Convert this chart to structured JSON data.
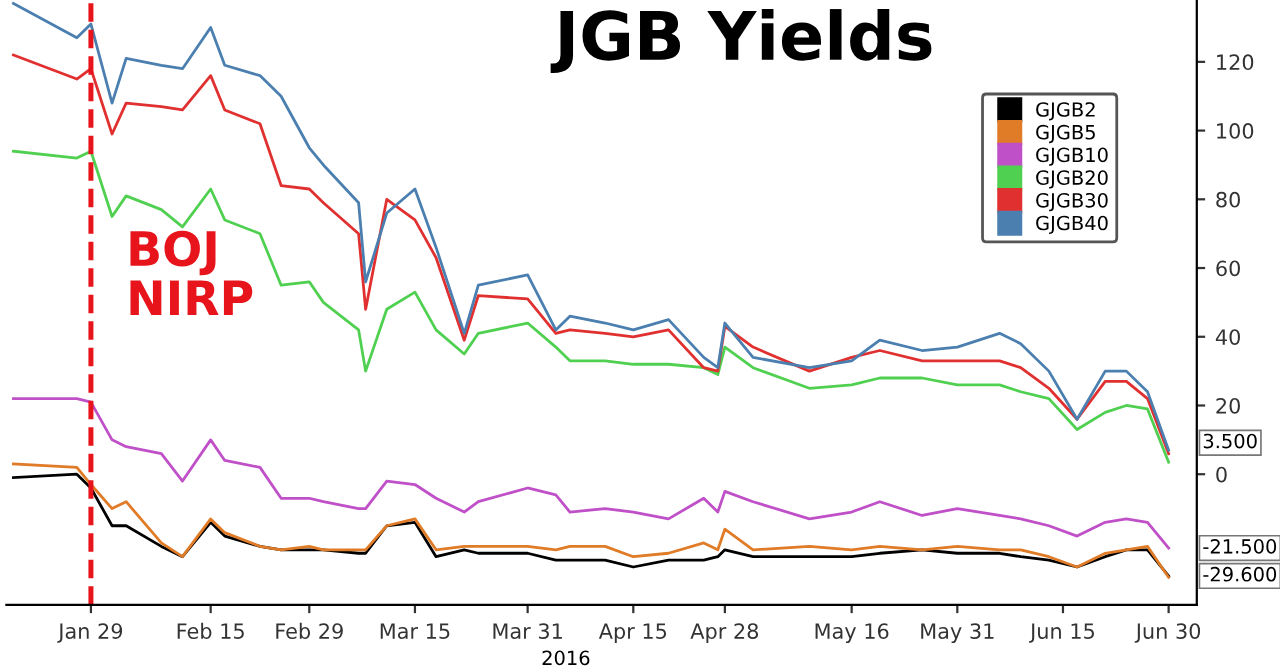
{
  "chart_data": {
    "type": "line",
    "title": "JGB Yields",
    "xlabel": "2016",
    "x": [
      "2016-01-18",
      "2016-01-27",
      "2016-01-29",
      "2016-02-01",
      "2016-02-03",
      "2016-02-08",
      "2016-02-11",
      "2016-02-15",
      "2016-02-17",
      "2016-02-22",
      "2016-02-25",
      "2016-02-29",
      "2016-03-02",
      "2016-03-07",
      "2016-03-08",
      "2016-03-11",
      "2016-03-15",
      "2016-03-18",
      "2016-03-22",
      "2016-03-24",
      "2016-03-31",
      "2016-04-04",
      "2016-04-06",
      "2016-04-11",
      "2016-04-15",
      "2016-04-20",
      "2016-04-25",
      "2016-04-27",
      "2016-04-28",
      "2016-05-02",
      "2016-05-10",
      "2016-05-16",
      "2016-05-20",
      "2016-05-26",
      "2016-05-31",
      "2016-06-06",
      "2016-06-09",
      "2016-06-13",
      "2016-06-17",
      "2016-06-21",
      "2016-06-24",
      "2016-06-27",
      "2016-06-30"
    ],
    "series": [
      {
        "name": "GJGB2",
        "color": "#000000",
        "values": [
          -1,
          0,
          -4,
          -15,
          -15,
          -21,
          -24,
          -14,
          -18,
          -21,
          -22,
          -22,
          -22,
          -23,
          -23,
          -15,
          -14,
          -24,
          -22,
          -23,
          -23,
          -25,
          -25,
          -25,
          -27,
          -25,
          -25,
          -24,
          -22,
          -24,
          -24,
          -24,
          -23,
          -22,
          -23,
          -23,
          -24,
          -25,
          -27,
          -24,
          -22,
          -22,
          -29.6
        ]
      },
      {
        "name": "GJGB5",
        "color": "#e07b28",
        "values": [
          3,
          2,
          -3,
          -10,
          -8,
          -20,
          -24,
          -13,
          -17,
          -21,
          -22,
          -21,
          -22,
          -22,
          -22,
          -15,
          -13,
          -22,
          -21,
          -21,
          -21,
          -22,
          -21,
          -21,
          -24,
          -23,
          -20,
          -22,
          -16,
          -22,
          -21,
          -22,
          -21,
          -22,
          -21,
          -22,
          -22,
          -24,
          -27,
          -23,
          -22,
          -21,
          -30
        ]
      },
      {
        "name": "GJGB10",
        "color": "#c050c8",
        "values": [
          22,
          22,
          21,
          10,
          8,
          6,
          -2,
          10,
          4,
          2,
          -7,
          -7,
          -8,
          -10,
          -10,
          -2,
          -3,
          -7,
          -11,
          -8,
          -4,
          -6,
          -11,
          -10,
          -11,
          -13,
          -7,
          -11,
          -5,
          -8,
          -13,
          -11,
          -8,
          -12,
          -10,
          -12,
          -13,
          -15,
          -18,
          -14,
          -13,
          -14,
          -21.5
        ]
      },
      {
        "name": "GJGB20",
        "color": "#50d050",
        "values": [
          94,
          92,
          94,
          75,
          81,
          77,
          72,
          83,
          74,
          70,
          55,
          56,
          50,
          42,
          30,
          48,
          53,
          42,
          35,
          41,
          44,
          37,
          33,
          33,
          32,
          32,
          31,
          29,
          37,
          31,
          25,
          26,
          28,
          28,
          26,
          26,
          24,
          22,
          13,
          18,
          20,
          19,
          3.5
        ]
      },
      {
        "name": "GJGB30",
        "color": "#e03030",
        "values": [
          122,
          115,
          118,
          99,
          108,
          107,
          106,
          116,
          106,
          102,
          84,
          83,
          79,
          70,
          48,
          80,
          74,
          63,
          39,
          52,
          51,
          41,
          42,
          41,
          40,
          42,
          31,
          30,
          43,
          37,
          30,
          34,
          36,
          33,
          33,
          33,
          31,
          25,
          16,
          27,
          27,
          22,
          6
        ]
      },
      {
        "name": "GJGB40",
        "color": "#4a7fb0",
        "values": [
          137,
          127,
          131,
          108,
          121,
          119,
          118,
          130,
          119,
          116,
          110,
          95,
          90,
          79,
          56,
          76,
          83,
          66,
          41,
          55,
          58,
          42,
          46,
          44,
          42,
          45,
          34,
          31,
          44,
          34,
          31,
          33,
          39,
          36,
          37,
          41,
          38,
          30,
          16,
          30,
          30,
          24,
          7
        ]
      }
    ],
    "xlim": [
      "2016-01-17",
      "2016-07-04"
    ],
    "xticks": [
      {
        "value": "2016-01-29",
        "label": "Jan 29"
      },
      {
        "value": "2016-02-15",
        "label": "Feb 15"
      },
      {
        "value": "2016-02-29",
        "label": "Feb 29"
      },
      {
        "value": "2016-03-15",
        "label": "Mar 15"
      },
      {
        "value": "2016-03-31",
        "label": "Mar 31"
      },
      {
        "value": "2016-04-15",
        "label": "Apr 15"
      },
      {
        "value": "2016-04-28",
        "label": "Apr 28"
      },
      {
        "value": "2016-05-16",
        "label": "May 16"
      },
      {
        "value": "2016-05-31",
        "label": "May 31"
      },
      {
        "value": "2016-06-15",
        "label": "Jun 15"
      },
      {
        "value": "2016-06-30",
        "label": "Jun 30"
      }
    ],
    "ylim": [
      -38,
      138
    ],
    "yticks": [
      0,
      20,
      40,
      60,
      80,
      100,
      120
    ],
    "ref_lines": [
      {
        "axis": "x",
        "value": "2016-01-29",
        "label": "BOJ NIRP",
        "color": "#e8141b",
        "line_style": "dashed"
      }
    ],
    "annotations": [
      {
        "text": "3.500",
        "x": "2016-06-30",
        "y": 3.5
      },
      {
        "text": "-21.500",
        "x": "2016-06-30",
        "y": -21.5
      },
      {
        "text": "-29.600",
        "x": "2016-06-30",
        "y": -29.6
      }
    ],
    "legend": "top right",
    "grid": false,
    "marker": "none",
    "line_style": "solid"
  }
}
